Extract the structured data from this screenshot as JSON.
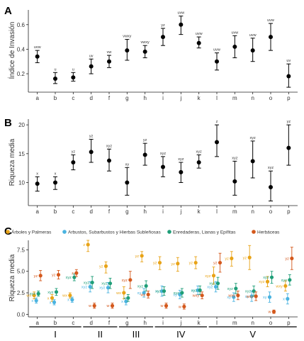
{
  "chart_data": [
    {
      "panel": "A",
      "type": "scatter",
      "ylabel": "Índice de Invasión",
      "categories": [
        "a",
        "b",
        "c",
        "d",
        "f",
        "g",
        "h",
        "i",
        "j",
        "k",
        "l",
        "m",
        "n",
        "o",
        "p"
      ],
      "values": [
        0.34,
        0.16,
        0.17,
        0.26,
        0.3,
        0.39,
        0.38,
        0.5,
        0.6,
        0.45,
        0.3,
        0.42,
        0.39,
        0.5,
        0.18
      ],
      "lower": [
        0.29,
        0.12,
        0.14,
        0.2,
        0.25,
        0.31,
        0.33,
        0.43,
        0.52,
        0.41,
        0.23,
        0.33,
        0.3,
        0.39,
        0.09
      ],
      "upper": [
        0.39,
        0.21,
        0.21,
        0.32,
        0.35,
        0.48,
        0.43,
        0.57,
        0.67,
        0.5,
        0.37,
        0.51,
        0.49,
        0.61,
        0.28
      ],
      "letters": [
        "uvw",
        "u",
        "u",
        "uv",
        "vw",
        "vwxy",
        "vwxy",
        "yz",
        "uvw",
        "uvw",
        "uvw",
        "uvw",
        "uvw",
        "uvw",
        "uv"
      ],
      "yticks": [
        "0.2",
        "0.4",
        "0.6"
      ],
      "ylim": [
        0.05,
        0.72
      ]
    },
    {
      "panel": "B",
      "type": "scatter",
      "ylabel": "Riqueza media",
      "categories": [
        "a",
        "b",
        "c",
        "d",
        "f",
        "g",
        "h",
        "i",
        "j",
        "k",
        "l",
        "m",
        "n",
        "o",
        "p"
      ],
      "values": [
        9.8,
        10.0,
        13.5,
        15.3,
        13.8,
        10.0,
        14.8,
        12.7,
        11.8,
        13.5,
        17.0,
        10.2,
        13.7,
        9.2,
        16.0
      ],
      "lower": [
        8.5,
        8.8,
        12.2,
        13.5,
        12.0,
        7.8,
        13.0,
        11.0,
        10.0,
        12.5,
        14.5,
        7.8,
        10.8,
        6.8,
        13.0
      ],
      "upper": [
        11.0,
        11.0,
        14.8,
        17.5,
        15.8,
        12.6,
        16.8,
        14.5,
        13.5,
        14.8,
        20.0,
        13.7,
        17.2,
        12.0,
        20.0
      ],
      "letters": [
        "x",
        "x",
        "yz",
        "yz",
        "xyz",
        "xy",
        "yz",
        "xyz",
        "xyz",
        "xyz",
        "z",
        "xyz",
        "xyz",
        "xyz",
        "yz"
      ],
      "yticks": [
        "10",
        "15",
        "20"
      ],
      "ylim": [
        6.0,
        21.0
      ]
    },
    {
      "panel": "C",
      "type": "scatter",
      "ylabel": "Riqueza media",
      "legend": [
        "Árboles y Palmeras",
        "Arbustos, Subarbustos y Hierbas Subleñosas",
        "Enredaderas, Lianas y Epífitas",
        "Herbáceas"
      ],
      "colors": [
        "#e8a317",
        "#4ab3e0",
        "#1f9e78",
        "#d4581c"
      ],
      "categories": [
        "a",
        "b",
        "c",
        "d",
        "f",
        "g",
        "h",
        "i",
        "j",
        "k",
        "l",
        "m",
        "n",
        "o",
        "p"
      ],
      "yticks": [
        "0.0",
        "2.5",
        "5.0",
        "7.5"
      ],
      "ylim": [
        -0.3,
        8.6
      ],
      "groups": [
        {
          "label": "I",
          "from": 0,
          "to": 2
        },
        {
          "label": "II",
          "from": 3,
          "to": 4
        },
        {
          "label": "III",
          "from": 5,
          "to": 6
        },
        {
          "label": "IV",
          "from": 7,
          "to": 9
        },
        {
          "label": "V",
          "from": 10,
          "to": 14
        }
      ],
      "series": [
        {
          "name": "Árboles y Palmeras",
          "values": [
            2.2,
            1.9,
            2.2,
            8.1,
            5.6,
            2.5,
            6.8,
            6.0,
            5.9,
            6.0,
            4.5,
            6.5,
            6.6,
            3.8,
            3.3
          ],
          "lower": [
            1.8,
            1.5,
            1.9,
            7.3,
            4.8,
            1.8,
            6.1,
            5.2,
            5.0,
            5.3,
            3.5,
            5.6,
            5.2,
            3.2,
            2.7
          ],
          "upper": [
            2.6,
            2.3,
            2.5,
            8.6,
            6.1,
            3.2,
            7.3,
            6.7,
            6.6,
            6.7,
            5.5,
            7.3,
            8.0,
            4.4,
            3.9
          ],
          "letters": [
            "wx",
            "x",
            "wx",
            "z",
            "yz",
            "wx",
            "yz",
            "yz",
            "yz",
            "yz",
            "xyz",
            "yz",
            "yz",
            "xyz",
            "wxy"
          ]
        },
        {
          "name": "Arbustos, Subarbustos y Hierbas Subleñosas",
          "values": [
            1.6,
            1.4,
            1.7,
            3.2,
            3.1,
            1.5,
            2.5,
            2.7,
            2.3,
            2.8,
            3.2,
            2.0,
            2.1,
            2.0,
            1.8
          ],
          "lower": [
            1.3,
            1.1,
            1.4,
            2.6,
            2.5,
            1.1,
            2.0,
            2.1,
            1.8,
            2.3,
            2.6,
            1.5,
            1.5,
            1.4,
            1.2
          ],
          "upper": [
            1.9,
            1.7,
            2.0,
            3.8,
            3.7,
            1.9,
            3.0,
            3.3,
            2.8,
            3.3,
            3.8,
            2.5,
            2.7,
            2.6,
            2.4
          ],
          "letters": [
            "x",
            "x",
            "x",
            "xyz",
            "xyz",
            "x",
            "xy",
            "xy",
            "xy",
            "xy",
            "xyz",
            "xy",
            "xy",
            "xy",
            "x"
          ]
        },
        {
          "name": "Enredaderas, Lianas y Epífitas",
          "values": [
            2.4,
            2.6,
            4.3,
            3.7,
            3.6,
            1.9,
            3.3,
            2.7,
            2.5,
            2.8,
            3.6,
            3.0,
            2.7,
            4.3,
            4.0
          ],
          "lower": [
            2.1,
            2.2,
            3.9,
            3.0,
            3.0,
            1.5,
            2.7,
            2.2,
            2.0,
            2.3,
            2.9,
            2.4,
            2.1,
            3.6,
            3.4
          ],
          "upper": [
            2.7,
            3.0,
            4.7,
            4.4,
            4.2,
            2.3,
            3.9,
            3.2,
            3.0,
            3.3,
            4.3,
            3.6,
            3.3,
            5.0,
            4.6
          ],
          "letters": [
            "xyz",
            "xyz",
            "xyz",
            "xyz",
            "xyz",
            "x",
            "xyz",
            "xyz",
            "xyz",
            "xyz",
            "xyz",
            "xyz",
            "xyz",
            "xyz",
            "xyz"
          ]
        },
        {
          "name": "Herbáceas",
          "values": [
            4.5,
            4.6,
            4.8,
            1.0,
            1.0,
            4.0,
            2.3,
            1.0,
            0.9,
            2.2,
            6.0,
            2.2,
            2.1,
            0.3,
            6.5
          ],
          "lower": [
            3.9,
            4.1,
            4.4,
            0.7,
            0.7,
            3.0,
            1.9,
            0.7,
            0.6,
            1.8,
            4.9,
            1.7,
            1.6,
            0.1,
            5.2
          ],
          "upper": [
            5.1,
            5.1,
            5.2,
            1.3,
            1.3,
            5.0,
            2.7,
            1.3,
            1.2,
            2.6,
            7.1,
            2.7,
            2.6,
            0.5,
            7.8
          ],
          "letters": [
            "yz",
            "yz",
            "z",
            "w",
            "w",
            "xyz",
            "wx",
            "w",
            "w",
            "wxy",
            "yz",
            "wxy",
            "wxy",
            "w",
            "yz"
          ]
        }
      ]
    }
  ]
}
